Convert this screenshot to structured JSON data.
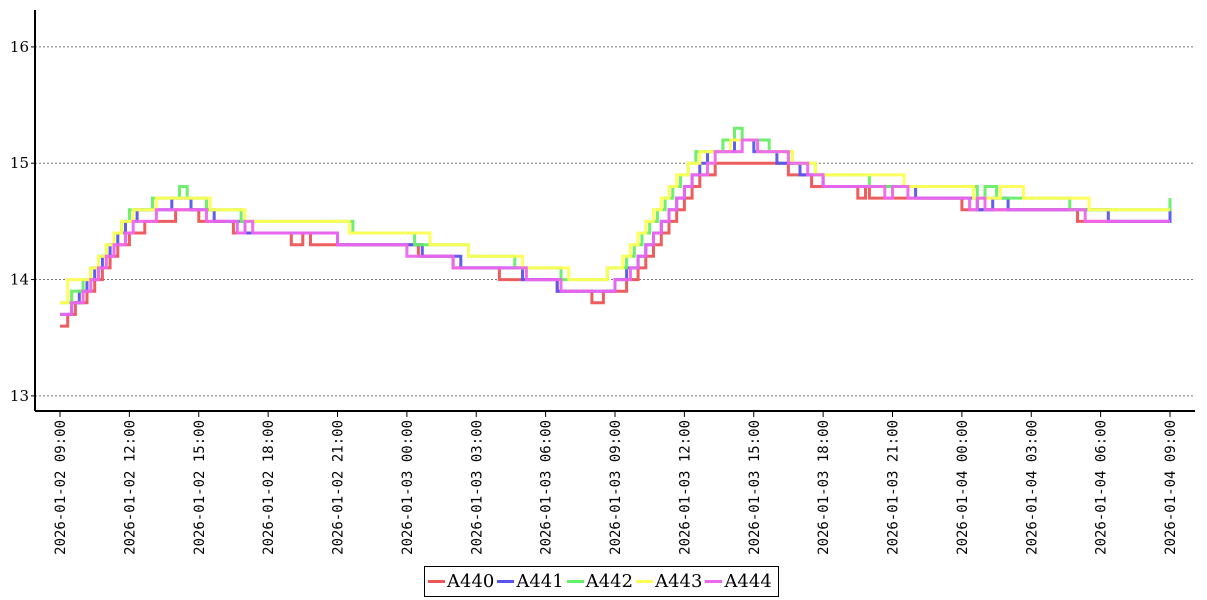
{
  "chart_data": {
    "type": "line",
    "step": true,
    "xlabel": "",
    "ylabel": "",
    "title": "",
    "x_tick_labels": [
      "2026-01-02 09:00",
      "2026-01-02 12:00",
      "2026-01-02 15:00",
      "2026-01-02 18:00",
      "2026-01-02 21:00",
      "2026-01-03 00:00",
      "2026-01-03 03:00",
      "2026-01-03 06:00",
      "2026-01-03 09:00",
      "2026-01-03 12:00",
      "2026-01-03 15:00",
      "2026-01-03 18:00",
      "2026-01-03 21:00",
      "2026-01-04 00:00",
      "2026-01-04 03:00",
      "2026-01-04 06:00",
      "2026-01-04 09:00"
    ],
    "x_range": [
      "2026-01-02 09:00",
      "2026-01-04 09:00"
    ],
    "y_ticks": [
      "13",
      "14",
      "15",
      "16"
    ],
    "ylim": [
      12.87,
      16.3
    ],
    "grid": "horizontal dashed",
    "legend_position": "bottom-center",
    "series": [
      {
        "name": "A440",
        "color": "#ee5555",
        "points": [
          [
            "2026-01-02 09:00",
            13.6
          ],
          [
            "2026-01-02 09:20",
            13.7
          ],
          [
            "2026-01-02 09:40",
            13.8
          ],
          [
            "2026-01-02 10:10",
            13.9
          ],
          [
            "2026-01-02 10:30",
            14.0
          ],
          [
            "2026-01-02 10:50",
            14.1
          ],
          [
            "2026-01-02 11:10",
            14.2
          ],
          [
            "2026-01-02 11:30",
            14.3
          ],
          [
            "2026-01-02 12:00",
            14.4
          ],
          [
            "2026-01-02 12:40",
            14.5
          ],
          [
            "2026-01-02 14:00",
            14.6
          ],
          [
            "2026-01-02 15:00",
            14.5
          ],
          [
            "2026-01-02 16:30",
            14.4
          ],
          [
            "2026-01-02 19:00",
            14.3
          ],
          [
            "2026-01-02 19:30",
            14.4
          ],
          [
            "2026-01-02 19:50",
            14.3
          ],
          [
            "2026-01-02 22:00",
            14.3
          ],
          [
            "2026-01-03 00:30",
            14.2
          ],
          [
            "2026-01-03 02:00",
            14.1
          ],
          [
            "2026-01-03 04:00",
            14.0
          ],
          [
            "2026-01-03 06:30",
            13.9
          ],
          [
            "2026-01-03 08:00",
            13.8
          ],
          [
            "2026-01-03 08:30",
            13.9
          ],
          [
            "2026-01-03 09:30",
            14.0
          ],
          [
            "2026-01-03 10:00",
            14.1
          ],
          [
            "2026-01-03 10:20",
            14.2
          ],
          [
            "2026-01-03 10:40",
            14.3
          ],
          [
            "2026-01-03 11:00",
            14.4
          ],
          [
            "2026-01-03 11:20",
            14.5
          ],
          [
            "2026-01-03 11:40",
            14.6
          ],
          [
            "2026-01-03 12:00",
            14.7
          ],
          [
            "2026-01-03 12:20",
            14.8
          ],
          [
            "2026-01-03 12:40",
            14.9
          ],
          [
            "2026-01-03 13:20",
            15.0
          ],
          [
            "2026-01-03 16:30",
            14.9
          ],
          [
            "2026-01-03 17:30",
            14.8
          ],
          [
            "2026-01-03 19:30",
            14.7
          ],
          [
            "2026-01-03 19:50",
            14.8
          ],
          [
            "2026-01-03 20:00",
            14.7
          ],
          [
            "2026-01-04 00:00",
            14.6
          ],
          [
            "2026-01-04 00:30",
            14.6
          ],
          [
            "2026-01-04 05:00",
            14.5
          ],
          [
            "2026-01-04 09:00",
            14.5
          ]
        ]
      },
      {
        "name": "A441",
        "color": "#5555ee",
        "points": [
          [
            "2026-01-02 09:00",
            13.7
          ],
          [
            "2026-01-02 09:30",
            13.8
          ],
          [
            "2026-01-02 09:50",
            13.9
          ],
          [
            "2026-01-02 10:10",
            14.0
          ],
          [
            "2026-01-02 10:30",
            14.1
          ],
          [
            "2026-01-02 10:50",
            14.2
          ],
          [
            "2026-01-02 11:10",
            14.3
          ],
          [
            "2026-01-02 11:30",
            14.4
          ],
          [
            "2026-01-02 11:50",
            14.5
          ],
          [
            "2026-01-02 12:20",
            14.6
          ],
          [
            "2026-01-02 13:50",
            14.7
          ],
          [
            "2026-01-02 14:40",
            14.6
          ],
          [
            "2026-01-02 15:40",
            14.5
          ],
          [
            "2026-01-02 17:00",
            14.4
          ],
          [
            "2026-01-02 20:00",
            14.4
          ],
          [
            "2026-01-02 21:00",
            14.3
          ],
          [
            "2026-01-03 00:40",
            14.2
          ],
          [
            "2026-01-03 02:20",
            14.1
          ],
          [
            "2026-01-03 05:00",
            14.0
          ],
          [
            "2026-01-03 06:30",
            13.9
          ],
          [
            "2026-01-03 09:00",
            14.0
          ],
          [
            "2026-01-03 09:30",
            14.1
          ],
          [
            "2026-01-03 10:00",
            14.2
          ],
          [
            "2026-01-03 10:20",
            14.3
          ],
          [
            "2026-01-03 10:40",
            14.4
          ],
          [
            "2026-01-03 11:00",
            14.5
          ],
          [
            "2026-01-03 11:20",
            14.6
          ],
          [
            "2026-01-03 11:40",
            14.7
          ],
          [
            "2026-01-03 12:00",
            14.8
          ],
          [
            "2026-01-03 12:20",
            14.9
          ],
          [
            "2026-01-03 12:40",
            15.0
          ],
          [
            "2026-01-03 13:00",
            15.1
          ],
          [
            "2026-01-03 14:10",
            15.2
          ],
          [
            "2026-01-03 15:00",
            15.1
          ],
          [
            "2026-01-03 16:00",
            15.0
          ],
          [
            "2026-01-03 17:00",
            14.9
          ],
          [
            "2026-01-03 18:00",
            14.8
          ],
          [
            "2026-01-03 22:00",
            14.7
          ],
          [
            "2026-01-04 00:00",
            14.7
          ],
          [
            "2026-01-04 00:40",
            14.6
          ],
          [
            "2026-01-04 01:20",
            14.7
          ],
          [
            "2026-01-04 02:00",
            14.6
          ],
          [
            "2026-01-04 05:00",
            14.6
          ],
          [
            "2026-01-04 06:20",
            14.5
          ],
          [
            "2026-01-04 09:00",
            14.6
          ]
        ]
      },
      {
        "name": "A442",
        "color": "#66ee66",
        "points": [
          [
            "2026-01-02 09:00",
            13.8
          ],
          [
            "2026-01-02 09:30",
            13.9
          ],
          [
            "2026-01-02 10:00",
            14.0
          ],
          [
            "2026-01-02 10:20",
            14.1
          ],
          [
            "2026-01-02 10:40",
            14.2
          ],
          [
            "2026-01-02 11:00",
            14.3
          ],
          [
            "2026-01-02 11:20",
            14.4
          ],
          [
            "2026-01-02 11:40",
            14.5
          ],
          [
            "2026-01-02 12:00",
            14.6
          ],
          [
            "2026-01-02 13:00",
            14.7
          ],
          [
            "2026-01-02 14:10",
            14.8
          ],
          [
            "2026-01-02 14:30",
            14.7
          ],
          [
            "2026-01-02 15:20",
            14.6
          ],
          [
            "2026-01-02 16:50",
            14.5
          ],
          [
            "2026-01-02 19:00",
            14.5
          ],
          [
            "2026-01-02 21:40",
            14.4
          ],
          [
            "2026-01-03 00:20",
            14.3
          ],
          [
            "2026-01-03 02:40",
            14.2
          ],
          [
            "2026-01-03 04:40",
            14.1
          ],
          [
            "2026-01-03 06:40",
            14.0
          ],
          [
            "2026-01-03 08:40",
            14.1
          ],
          [
            "2026-01-03 09:30",
            14.2
          ],
          [
            "2026-01-03 09:50",
            14.3
          ],
          [
            "2026-01-03 10:10",
            14.4
          ],
          [
            "2026-01-03 10:30",
            14.5
          ],
          [
            "2026-01-03 10:50",
            14.6
          ],
          [
            "2026-01-03 11:10",
            14.7
          ],
          [
            "2026-01-03 11:30",
            14.8
          ],
          [
            "2026-01-03 11:50",
            14.9
          ],
          [
            "2026-01-03 12:10",
            15.0
          ],
          [
            "2026-01-03 12:30",
            15.1
          ],
          [
            "2026-01-03 13:40",
            15.2
          ],
          [
            "2026-01-03 14:10",
            15.3
          ],
          [
            "2026-01-03 14:30",
            15.2
          ],
          [
            "2026-01-03 15:40",
            15.1
          ],
          [
            "2026-01-03 16:40",
            15.0
          ],
          [
            "2026-01-03 17:40",
            14.9
          ],
          [
            "2026-01-03 20:00",
            14.8
          ],
          [
            "2026-01-04 00:40",
            14.7
          ],
          [
            "2026-01-04 01:00",
            14.8
          ],
          [
            "2026-01-04 01:30",
            14.7
          ],
          [
            "2026-01-04 04:40",
            14.6
          ],
          [
            "2026-01-04 09:00",
            14.7
          ]
        ]
      },
      {
        "name": "A443",
        "color": "#ffff55",
        "points": [
          [
            "2026-01-02 09:00",
            13.8
          ],
          [
            "2026-01-02 09:20",
            14.0
          ],
          [
            "2026-01-02 09:50",
            14.0
          ],
          [
            "2026-01-02 10:20",
            14.1
          ],
          [
            "2026-01-02 10:40",
            14.2
          ],
          [
            "2026-01-02 11:00",
            14.3
          ],
          [
            "2026-01-02 11:20",
            14.4
          ],
          [
            "2026-01-02 11:40",
            14.5
          ],
          [
            "2026-01-02 12:10",
            14.6
          ],
          [
            "2026-01-02 13:10",
            14.7
          ],
          [
            "2026-01-02 15:30",
            14.6
          ],
          [
            "2026-01-02 17:00",
            14.5
          ],
          [
            "2026-01-02 20:30",
            14.5
          ],
          [
            "2026-01-02 21:30",
            14.4
          ],
          [
            "2026-01-03 01:00",
            14.3
          ],
          [
            "2026-01-03 02:40",
            14.2
          ],
          [
            "2026-01-03 05:00",
            14.1
          ],
          [
            "2026-01-03 07:00",
            14.0
          ],
          [
            "2026-01-03 08:40",
            14.1
          ],
          [
            "2026-01-03 09:20",
            14.2
          ],
          [
            "2026-01-03 09:40",
            14.3
          ],
          [
            "2026-01-03 10:00",
            14.4
          ],
          [
            "2026-01-03 10:20",
            14.5
          ],
          [
            "2026-01-03 10:40",
            14.6
          ],
          [
            "2026-01-03 11:00",
            14.7
          ],
          [
            "2026-01-03 11:20",
            14.8
          ],
          [
            "2026-01-03 11:40",
            14.9
          ],
          [
            "2026-01-03 12:10",
            15.0
          ],
          [
            "2026-01-03 12:40",
            15.1
          ],
          [
            "2026-01-03 14:00",
            15.2
          ],
          [
            "2026-01-03 15:10",
            15.1
          ],
          [
            "2026-01-03 16:40",
            15.0
          ],
          [
            "2026-01-03 17:40",
            14.9
          ],
          [
            "2026-01-03 20:00",
            14.9
          ],
          [
            "2026-01-03 21:30",
            14.8
          ],
          [
            "2026-01-04 00:30",
            14.7
          ],
          [
            "2026-01-04 01:40",
            14.8
          ],
          [
            "2026-01-04 02:40",
            14.7
          ],
          [
            "2026-01-04 05:30",
            14.6
          ],
          [
            "2026-01-04 09:00",
            14.6
          ]
        ]
      },
      {
        "name": "A444",
        "color": "#ee66ee",
        "points": [
          [
            "2026-01-02 09:00",
            13.7
          ],
          [
            "2026-01-02 09:30",
            13.8
          ],
          [
            "2026-01-02 10:00",
            13.9
          ],
          [
            "2026-01-02 10:20",
            14.0
          ],
          [
            "2026-01-02 10:40",
            14.1
          ],
          [
            "2026-01-02 11:00",
            14.2
          ],
          [
            "2026-01-02 11:20",
            14.3
          ],
          [
            "2026-01-02 11:50",
            14.4
          ],
          [
            "2026-01-02 12:10",
            14.5
          ],
          [
            "2026-01-02 13:10",
            14.6
          ],
          [
            "2026-01-02 14:40",
            14.6
          ],
          [
            "2026-01-02 15:20",
            14.5
          ],
          [
            "2026-01-02 16:40",
            14.4
          ],
          [
            "2026-01-02 17:00",
            14.5
          ],
          [
            "2026-01-02 17:20",
            14.4
          ],
          [
            "2026-01-02 21:00",
            14.3
          ],
          [
            "2026-01-03 00:00",
            14.2
          ],
          [
            "2026-01-03 02:00",
            14.1
          ],
          [
            "2026-01-03 05:10",
            14.0
          ],
          [
            "2026-01-03 06:40",
            13.9
          ],
          [
            "2026-01-03 09:00",
            14.0
          ],
          [
            "2026-01-03 09:40",
            14.1
          ],
          [
            "2026-01-03 10:00",
            14.2
          ],
          [
            "2026-01-03 10:20",
            14.3
          ],
          [
            "2026-01-03 10:40",
            14.4
          ],
          [
            "2026-01-03 11:00",
            14.5
          ],
          [
            "2026-01-03 11:20",
            14.6
          ],
          [
            "2026-01-03 11:40",
            14.7
          ],
          [
            "2026-01-03 12:00",
            14.8
          ],
          [
            "2026-01-03 12:20",
            14.9
          ],
          [
            "2026-01-03 13:00",
            15.0
          ],
          [
            "2026-01-03 13:20",
            15.1
          ],
          [
            "2026-01-03 14:30",
            15.2
          ],
          [
            "2026-01-03 15:10",
            15.1
          ],
          [
            "2026-01-03 16:30",
            15.0
          ],
          [
            "2026-01-03 17:20",
            14.9
          ],
          [
            "2026-01-03 18:00",
            14.8
          ],
          [
            "2026-01-03 20:40",
            14.7
          ],
          [
            "2026-01-03 21:00",
            14.8
          ],
          [
            "2026-01-03 21:40",
            14.7
          ],
          [
            "2026-01-04 00:20",
            14.6
          ],
          [
            "2026-01-04 00:40",
            14.7
          ],
          [
            "2026-01-04 01:00",
            14.6
          ],
          [
            "2026-01-04 05:20",
            14.5
          ],
          [
            "2026-01-04 09:00",
            14.5
          ]
        ]
      }
    ]
  }
}
